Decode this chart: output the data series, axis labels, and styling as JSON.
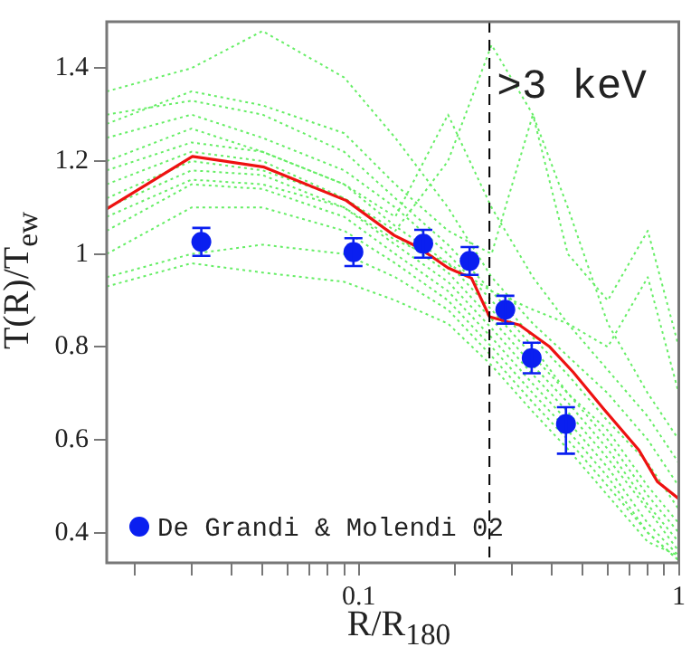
{
  "chart_data": {
    "type": "line",
    "xlabel": "R/R$_{180}$",
    "ylabel": "T(R)/T$_{ew}$",
    "log": "x",
    "grid": false,
    "legend": "bottom left",
    "xlim": [
      0.0163,
      1
    ],
    "xticks": [
      {
        "value": 0.02,
        "label": null
      },
      {
        "value": 0.03,
        "label": null
      },
      {
        "value": 0.04,
        "label": null
      },
      {
        "value": 0.05,
        "label": null
      },
      {
        "value": 0.06,
        "label": null
      },
      {
        "value": 0.07,
        "label": null
      },
      {
        "value": 0.08,
        "label": null
      },
      {
        "value": 0.09,
        "label": null
      },
      0.1,
      {
        "value": 0.2,
        "label": null
      },
      {
        "value": 0.3,
        "label": null
      },
      {
        "value": 0.4,
        "label": null
      },
      {
        "value": 0.5,
        "label": null
      },
      {
        "value": 0.6,
        "label": null
      },
      {
        "value": 0.7,
        "label": null
      },
      {
        "value": 0.8,
        "label": null
      },
      {
        "value": 0.9,
        "label": null
      },
      1
    ],
    "ylim": [
      0.335,
      1.5
    ],
    "yticks": [
      0.4,
      0.6,
      0.8,
      1,
      1.2,
      1.4
    ],
    "ref_lines": [
      {
        "axis": "x",
        "value": 0.256,
        "line_style": "dashed",
        "color": "#000000"
      }
    ],
    "annotations": [
      {
        "text": ">3 keV",
        "x": 0.27,
        "y": 1.36
      }
    ],
    "x": [
      0.0163,
      0.03,
      0.05,
      0.09,
      0.13,
      0.19,
      0.26,
      0.35,
      0.45,
      0.6,
      0.8,
      1.0
    ],
    "series": [
      {
        "color": "#66ee66",
        "line_style": "dotted",
        "marker": "none",
        "values": [
          1.35,
          1.4,
          1.48,
          1.38,
          1.25,
          1.1,
          0.95,
          0.85,
          0.78,
          0.7,
          0.6,
          0.5
        ]
      },
      {
        "type": "line",
        "color": "#66ee66",
        "line_style": "dotted",
        "marker": "none",
        "values": [
          1.3,
          1.33,
          1.3,
          1.22,
          1.12,
          1.02,
          0.92,
          0.82,
          0.74,
          0.64,
          0.55,
          0.45
        ]
      },
      {
        "type": "line",
        "color": "#66ee66",
        "line_style": "dotted",
        "marker": "none",
        "values": [
          1.25,
          1.3,
          1.25,
          1.18,
          1.1,
          1.0,
          0.9,
          0.8,
          0.7,
          0.62,
          0.5,
          0.42
        ]
      },
      {
        "type": "line",
        "color": "#66ee66",
        "line_style": "dotted",
        "marker": "none",
        "values": [
          1.2,
          1.27,
          1.22,
          1.15,
          1.06,
          0.98,
          0.88,
          0.78,
          0.7,
          0.6,
          0.48,
          0.4
        ]
      },
      {
        "type": "line",
        "color": "#66ee66",
        "line_style": "dotted",
        "marker": "none",
        "values": [
          1.15,
          1.22,
          1.2,
          1.12,
          1.04,
          0.96,
          0.86,
          0.76,
          0.68,
          0.58,
          0.46,
          0.38
        ]
      },
      {
        "type": "line",
        "color": "#66ee66",
        "line_style": "dotted",
        "marker": "none",
        "values": [
          1.1,
          1.18,
          1.17,
          1.1,
          1.02,
          0.94,
          0.84,
          0.74,
          0.66,
          0.56,
          0.45,
          0.36
        ]
      },
      {
        "type": "line",
        "color": "#66ee66",
        "line_style": "dotted",
        "marker": "none",
        "values": [
          1.05,
          1.15,
          1.14,
          1.08,
          1.0,
          0.92,
          0.82,
          0.72,
          0.64,
          0.54,
          0.42,
          0.35
        ]
      },
      {
        "type": "line",
        "color": "#66ee66",
        "line_style": "dotted",
        "marker": "none",
        "values": [
          1.0,
          1.1,
          1.1,
          1.05,
          0.98,
          0.9,
          0.8,
          0.7,
          0.62,
          0.52,
          0.4,
          0.34
        ]
      },
      {
        "type": "line",
        "color": "#66ee66",
        "line_style": "dotted",
        "marker": "none",
        "values": [
          0.95,
          1.0,
          1.02,
          1.0,
          0.95,
          0.88,
          0.78,
          0.68,
          0.6,
          0.5,
          0.4,
          0.34
        ]
      },
      {
        "type": "line",
        "color": "#66ee66",
        "line_style": "dotted",
        "marker": "none",
        "values": [
          0.93,
          0.98,
          0.96,
          0.94,
          0.9,
          0.85,
          0.76,
          0.66,
          0.58,
          0.48,
          0.38,
          0.35
        ]
      },
      {
        "type": "line",
        "color": "#66ee66",
        "line_style": "dotted",
        "marker": "none",
        "values": [
          1.18,
          1.24,
          1.22,
          1.15,
          1.08,
          1.3,
          1.1,
          0.95,
          0.85,
          0.75,
          0.65,
          0.55
        ]
      },
      {
        "type": "line",
        "color": "#66ee66",
        "line_style": "dotted",
        "marker": "none",
        "values": [
          1.12,
          1.2,
          1.18,
          1.12,
          1.05,
          1.2,
          1.45,
          1.3,
          1.0,
          0.9,
          1.05,
          0.8
        ]
      },
      {
        "type": "line",
        "color": "#66ee66",
        "line_style": "dotted",
        "marker": "none",
        "values": [
          1.08,
          1.16,
          1.15,
          1.1,
          1.03,
          0.98,
          0.92,
          0.88,
          0.85,
          0.8,
          0.95,
          0.7
        ]
      },
      {
        "type": "line",
        "color": "#66ee66",
        "line_style": "dotted",
        "marker": "none",
        "values": [
          1.28,
          1.35,
          1.32,
          1.26,
          1.15,
          1.05,
          1.0,
          1.3,
          1.1,
          0.85,
          0.7,
          0.6
        ]
      },
      {
        "type": "line",
        "color": "#ee1111",
        "line_style": "solid",
        "marker": "none",
        "x": [
          0.0163,
          0.0302,
          0.0506,
          0.0914,
          0.129,
          0.153,
          0.19,
          0.225,
          0.256,
          0.318,
          0.395,
          0.467,
          0.581,
          0.75,
          0.857,
          1.0
        ],
        "values": [
          1.097,
          1.21,
          1.187,
          1.115,
          1.04,
          1.015,
          0.97,
          0.948,
          0.865,
          0.847,
          0.8,
          0.746,
          0.667,
          0.578,
          0.51,
          0.473
        ]
      },
      {
        "type": "scatter",
        "name": "De Grandi & Molendi 02",
        "color": "#0a1ff0",
        "marker": "circle",
        "x": [
          0.0322,
          0.0962,
          0.159,
          0.222,
          0.287,
          0.347,
          0.444
        ],
        "values": [
          1.026,
          1.004,
          1.022,
          0.985,
          0.88,
          0.776,
          0.634
        ],
        "errors": [
          0.03,
          0.03,
          0.03,
          0.03,
          0.03,
          0.033,
          [
            0.57,
            0.67
          ]
        ]
      }
    ]
  }
}
